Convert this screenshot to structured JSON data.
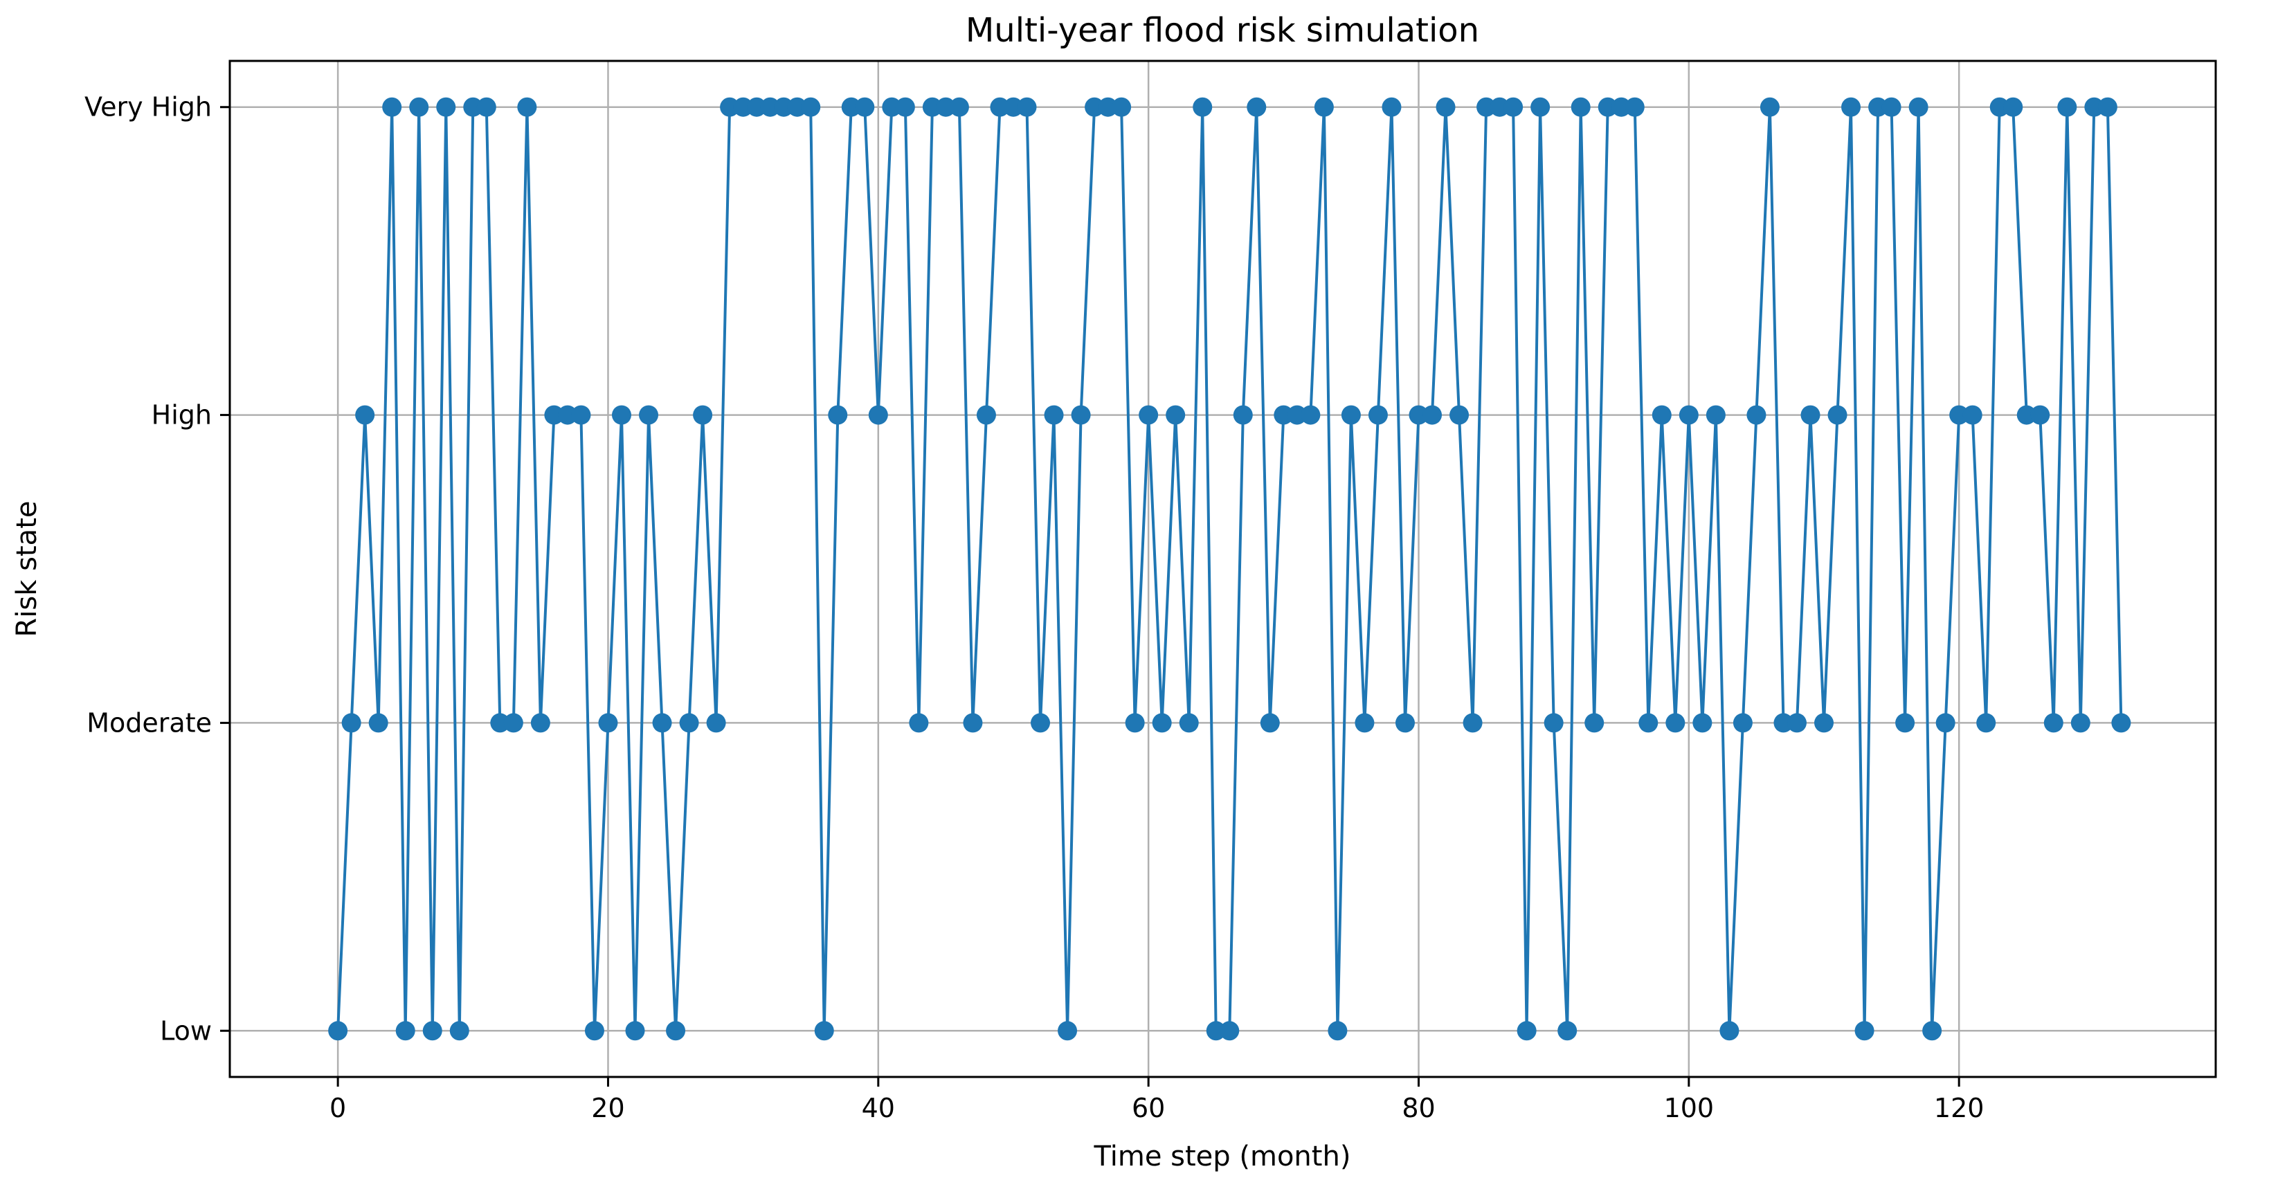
{
  "chart_data": {
    "type": "line",
    "title": "Multi-year flood risk simulation",
    "xlabel": "Time step (month)",
    "ylabel": "Risk state",
    "xlim": [
      -8,
      139
    ],
    "ylim": [
      -0.15,
      3.15
    ],
    "xticks": [
      0,
      20,
      40,
      60,
      80,
      100,
      120
    ],
    "yticks": [
      0,
      1,
      2,
      3
    ],
    "ytick_labels": [
      "Low",
      "Moderate",
      "High",
      "Very High"
    ],
    "grid": true,
    "color": "#1f77b4",
    "marker": "circle",
    "series": [
      {
        "name": "Risk state",
        "x": [
          0,
          1,
          2,
          3,
          4,
          5,
          6,
          7,
          8,
          9,
          10,
          11,
          12,
          13,
          14,
          15,
          16,
          17,
          18,
          19,
          20,
          21,
          22,
          23,
          24,
          25,
          26,
          27,
          28,
          29,
          30,
          31,
          32,
          33,
          34,
          35,
          36,
          37,
          38,
          39,
          40,
          41,
          42,
          43,
          44,
          45,
          46,
          47,
          48,
          49,
          50,
          51,
          52,
          53,
          54,
          55,
          56,
          57,
          58,
          59,
          60,
          61,
          62,
          63,
          64,
          65,
          66,
          67,
          68,
          69,
          70,
          71,
          72,
          73,
          74,
          75,
          76,
          77,
          78,
          79,
          80,
          81,
          82,
          83,
          84,
          85,
          86,
          87,
          88,
          89,
          90,
          91,
          92,
          93,
          94,
          95,
          96,
          97,
          98,
          99,
          100,
          101,
          102,
          103,
          104,
          105,
          106,
          107,
          108,
          109,
          110,
          111,
          112,
          113,
          114,
          115,
          116,
          117,
          118,
          119,
          120,
          121,
          122,
          123,
          124,
          125,
          126,
          127,
          128,
          129,
          130,
          131,
          132
        ],
        "values": [
          0,
          1,
          2,
          1,
          3,
          0,
          3,
          0,
          3,
          0,
          3,
          3,
          1,
          1,
          3,
          1,
          2,
          2,
          2,
          0,
          1,
          2,
          0,
          2,
          1,
          0,
          1,
          2,
          1,
          3,
          3,
          3,
          3,
          3,
          3,
          3,
          0,
          2,
          3,
          3,
          2,
          3,
          3,
          1,
          3,
          3,
          3,
          1,
          2,
          3,
          3,
          3,
          1,
          2,
          0,
          2,
          3,
          3,
          3,
          1,
          2,
          1,
          2,
          1,
          3,
          0,
          0,
          2,
          3,
          1,
          2,
          2,
          2,
          3,
          0,
          2,
          1,
          2,
          3,
          1,
          2,
          2,
          3,
          2,
          1,
          3,
          3,
          3,
          0,
          3,
          1,
          0,
          3,
          1,
          3,
          3,
          3,
          1,
          2,
          1,
          2,
          1,
          2,
          0,
          1,
          2,
          3,
          1,
          1,
          2,
          1,
          2,
          3,
          0,
          3,
          3,
          1,
          3,
          0,
          1,
          2,
          2,
          1,
          3,
          3,
          2,
          2,
          1,
          3,
          1,
          3,
          3,
          1
        ]
      }
    ]
  }
}
